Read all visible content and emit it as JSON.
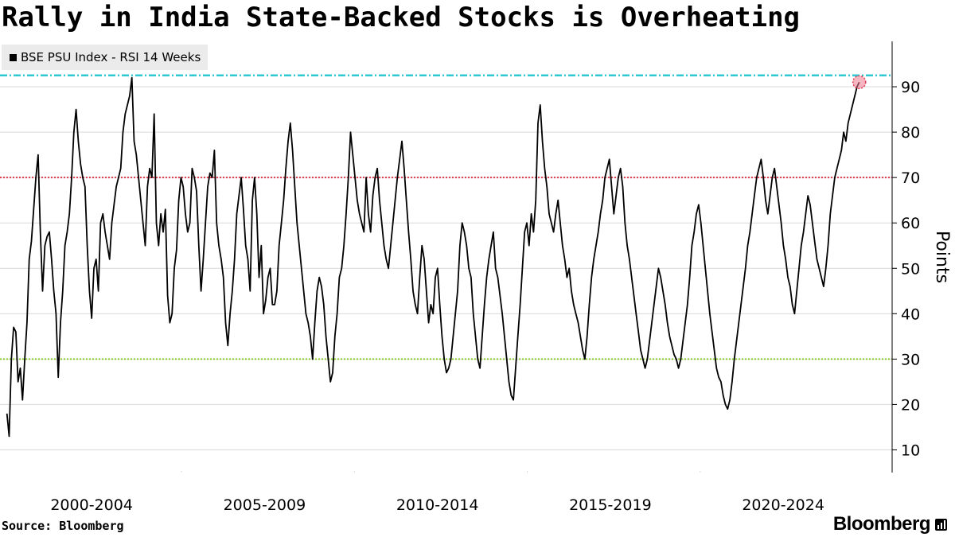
{
  "title": "Rally in India State-Backed Stocks is Overheating",
  "source": "Source: Bloomberg",
  "brand": "Bloomberg",
  "colors": {
    "series": "#000000",
    "threshold_cyan": "#2ec7d2",
    "threshold_red": "#e1394f",
    "threshold_green": "#8ccc2f",
    "marker": "#f07890",
    "legend_bg": "#ebebeb",
    "grid": "#d9d9d9"
  },
  "chart_data": {
    "type": "line",
    "title": "Rally in India State-Backed Stocks is Overheating",
    "series": [
      {
        "name": "BSE PSU Index - RSI 14 Weeks",
        "x_start": 1999.95,
        "x_end": 2024.6,
        "values": [
          18,
          13,
          30,
          37,
          36,
          25,
          28,
          21,
          30,
          38,
          52,
          56,
          63,
          70,
          75,
          58,
          45,
          55,
          57,
          58,
          52,
          45,
          40,
          26,
          38,
          45,
          55,
          58,
          62,
          70,
          80,
          85,
          78,
          73,
          70,
          68,
          55,
          45,
          39,
          50,
          52,
          45,
          60,
          62,
          58,
          55,
          52,
          60,
          64,
          68,
          70,
          72,
          80,
          84,
          86,
          88,
          92,
          78,
          75,
          70,
          65,
          60,
          55,
          68,
          72,
          70,
          84,
          60,
          55,
          62,
          58,
          63,
          44,
          38,
          40,
          50,
          54,
          65,
          70,
          68,
          62,
          58,
          60,
          72,
          70,
          67,
          55,
          45,
          52,
          60,
          68,
          71,
          70,
          76,
          60,
          55,
          52,
          48,
          38,
          33,
          40,
          45,
          52,
          62,
          66,
          70,
          63,
          55,
          52,
          45,
          65,
          70,
          62,
          48,
          55,
          40,
          43,
          48,
          50,
          42,
          42,
          45,
          55,
          60,
          65,
          72,
          78,
          82,
          76,
          68,
          60,
          55,
          50,
          45,
          40,
          38,
          35,
          30,
          38,
          45,
          48,
          46,
          42,
          35,
          30,
          25,
          27,
          35,
          40,
          48,
          50,
          55,
          62,
          70,
          80,
          75,
          70,
          65,
          62,
          60,
          58,
          70,
          62,
          58,
          66,
          70,
          72,
          65,
          60,
          55,
          52,
          50,
          55,
          60,
          65,
          70,
          74,
          78,
          72,
          65,
          58,
          52,
          45,
          42,
          40,
          48,
          55,
          52,
          45,
          38,
          42,
          40,
          48,
          50,
          42,
          35,
          30,
          27,
          28,
          30,
          35,
          40,
          45,
          55,
          60,
          58,
          55,
          50,
          48,
          40,
          35,
          30,
          28,
          35,
          42,
          48,
          52,
          55,
          58,
          50,
          48,
          44,
          40,
          35,
          30,
          25,
          22,
          21,
          28,
          35,
          42,
          50,
          58,
          60,
          55,
          62,
          58,
          65,
          82,
          86,
          78,
          72,
          68,
          62,
          60,
          58,
          62,
          65,
          60,
          55,
          52,
          48,
          50,
          45,
          42,
          40,
          38,
          35,
          32,
          30,
          35,
          42,
          48,
          52,
          55,
          58,
          62,
          65,
          70,
          72,
          74,
          68,
          62,
          66,
          70,
          72,
          68,
          60,
          55,
          52,
          48,
          44,
          40,
          36,
          32,
          30,
          28,
          30,
          34,
          38,
          42,
          46,
          50,
          48,
          45,
          42,
          38,
          35,
          33,
          31,
          30,
          28,
          30,
          34,
          38,
          42,
          48,
          55,
          58,
          62,
          64,
          60,
          55,
          50,
          45,
          40,
          36,
          32,
          28,
          26,
          25,
          22,
          20,
          19,
          21,
          25,
          30,
          34,
          38,
          42,
          46,
          50,
          55,
          58,
          62,
          66,
          70,
          72,
          74,
          70,
          65,
          62,
          66,
          70,
          72,
          68,
          64,
          60,
          55,
          52,
          48,
          46,
          42,
          40,
          45,
          50,
          55,
          58,
          62,
          66,
          64,
          60,
          56,
          52,
          50,
          48,
          46,
          50,
          55,
          62,
          66,
          70,
          72,
          74,
          76,
          80,
          78,
          82,
          84,
          86,
          88,
          90,
          91
        ]
      }
    ],
    "x_tick_labels": [
      "2000-2004",
      "2005-2009",
      "2010-2014",
      "2015-2019",
      "2020-2024"
    ],
    "y_ticks": [
      10,
      20,
      30,
      40,
      50,
      60,
      70,
      80,
      90
    ],
    "ylim": [
      5,
      100
    ],
    "ylabel": "Points",
    "xlabel": "",
    "thresholds": [
      {
        "value": 92.5,
        "style": "dash-dot",
        "color": "#2ec7d2"
      },
      {
        "value": 70,
        "style": "dotted",
        "color": "#e1394f"
      },
      {
        "value": 30,
        "style": "dotted",
        "color": "#8ccc2f"
      }
    ],
    "grid": true,
    "legend": "top-left",
    "latest_value_marker": 91
  }
}
